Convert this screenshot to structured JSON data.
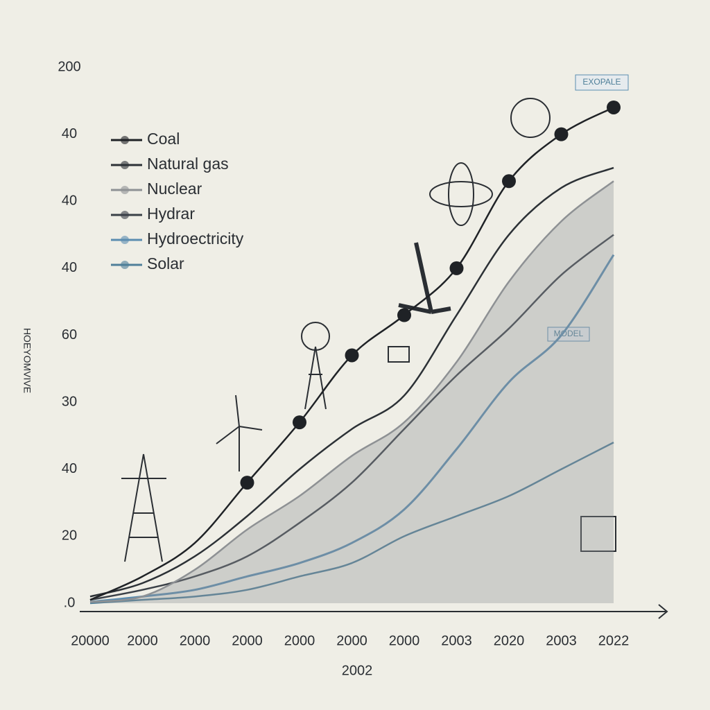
{
  "chart_data": {
    "type": "line",
    "y_label": "HOEYOMVIVE",
    "x_label": "2002",
    "categories": [
      "20000",
      "2000",
      "2000",
      "2000",
      "2000",
      "2000",
      "2000",
      "2003",
      "2020",
      "2003",
      "2022"
    ],
    "ylim": [
      0,
      8
    ],
    "yticks": [
      {
        "value": 0,
        "label": ".0"
      },
      {
        "value": 1,
        "label": "20"
      },
      {
        "value": 2,
        "label": "40"
      },
      {
        "value": 3,
        "label": "30"
      },
      {
        "value": 4,
        "label": "60"
      },
      {
        "value": 5,
        "label": "40"
      },
      {
        "value": 6,
        "label": "40"
      },
      {
        "value": 7,
        "label": "40"
      },
      {
        "value": 8,
        "label": "200"
      }
    ],
    "legend": "upper left",
    "annotations": [
      "EXOPALE",
      "MODEL"
    ],
    "series": [
      {
        "name": "Coal",
        "color": "#1f2226",
        "values": [
          0.05,
          0.4,
          0.9,
          1.8,
          2.7,
          3.7,
          4.3,
          5.0,
          6.3,
          7.0,
          7.4
        ]
      },
      {
        "name": "Natural gas",
        "color": "#2c3136",
        "values": [
          0.1,
          0.3,
          0.7,
          1.3,
          2.0,
          2.6,
          3.1,
          4.3,
          5.5,
          6.2,
          6.5
        ]
      },
      {
        "name": "Nuclear",
        "color": "#8e9194",
        "values": [
          0.02,
          0.1,
          0.5,
          1.1,
          1.6,
          2.2,
          2.7,
          3.6,
          4.8,
          5.7,
          6.3
        ]
      },
      {
        "name": "Hydrar",
        "color": "#3a4047",
        "values": [
          0.05,
          0.2,
          0.4,
          0.7,
          1.2,
          1.8,
          2.6,
          3.4,
          4.1,
          4.9,
          5.5
        ]
      },
      {
        "name": "Hydroectricity",
        "color": "#5b8db0",
        "values": [
          0.02,
          0.1,
          0.2,
          0.4,
          0.6,
          0.9,
          1.4,
          2.3,
          3.3,
          4.0,
          5.2
        ]
      },
      {
        "name": "Solar",
        "color": "#4f7f99",
        "values": [
          0.0,
          0.05,
          0.1,
          0.2,
          0.4,
          0.6,
          1.0,
          1.3,
          1.6,
          2.0,
          2.4
        ]
      }
    ]
  }
}
